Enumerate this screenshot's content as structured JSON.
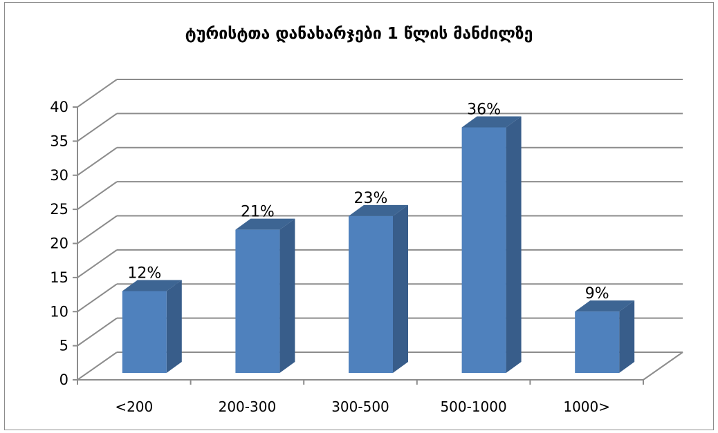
{
  "chart_data": {
    "type": "bar",
    "title": "ტურისტთა დანახარჯები 1 წლის მანძილზე",
    "categories": [
      "<200",
      "200-300",
      "300-500",
      "500-1000",
      "1000>"
    ],
    "values": [
      12,
      21,
      23,
      36,
      9
    ],
    "data_labels": [
      "12%",
      "21%",
      "23%",
      "36%",
      "9%"
    ],
    "ylim": [
      0,
      40
    ],
    "yticks": [
      0,
      5,
      10,
      15,
      20,
      25,
      30,
      35,
      40
    ],
    "grid": true,
    "style": "3d-column",
    "legend": "none",
    "colors": {
      "bar_front": "#4f81bd",
      "bar_side": "#385d8a",
      "bar_top": "#3d6593",
      "grid": "#8c8c8c"
    }
  }
}
